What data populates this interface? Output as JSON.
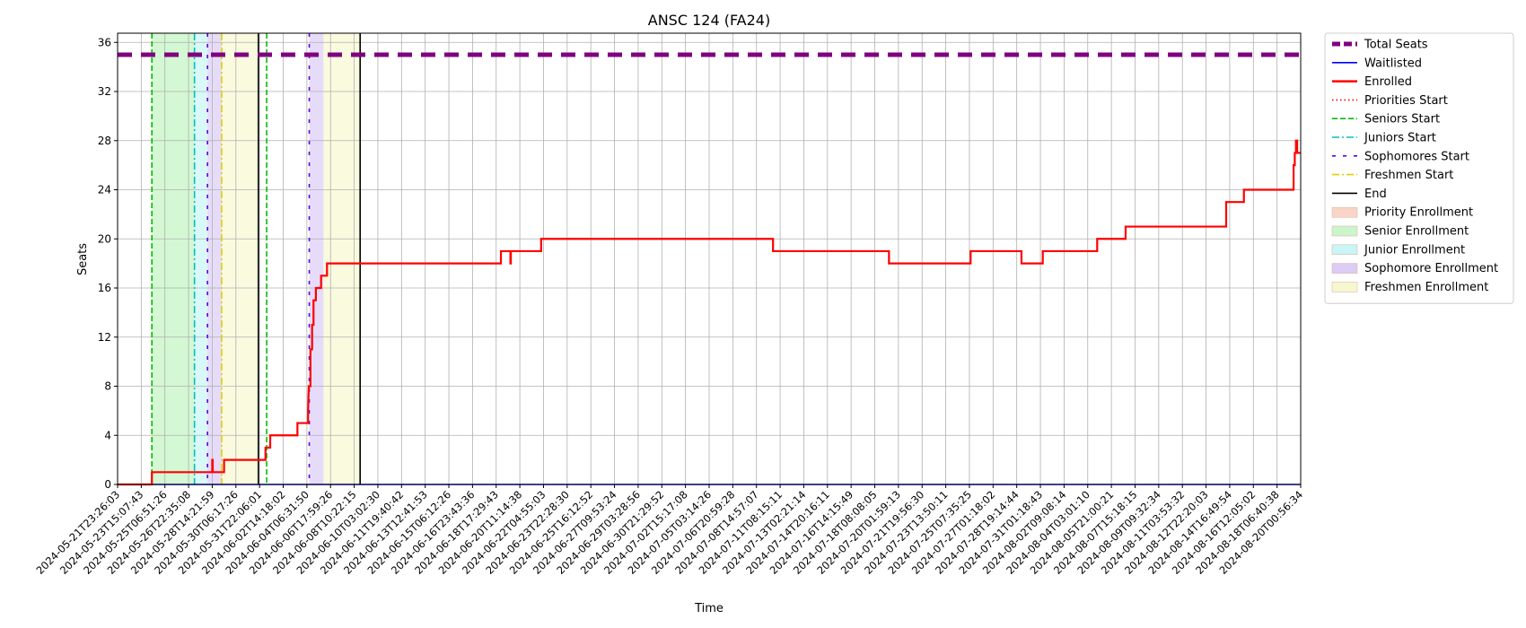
{
  "chart_data": {
    "type": "line",
    "title": "ANSC 124 (FA24)",
    "xlabel": "Time",
    "ylabel": "Seats",
    "ylim": [
      0,
      36.75
    ],
    "y_ticks": [
      0,
      4,
      8,
      12,
      16,
      20,
      24,
      28,
      32,
      36
    ],
    "grid": true,
    "legend_position": "outside-right",
    "x_tick_labels": [
      "2024-05-21T23:26:03",
      "2024-05-23T15:07:43",
      "2024-05-25T06:51:26",
      "2024-05-26T22:35:08",
      "2024-05-28T14:21:59",
      "2024-05-30T06:17:26",
      "2024-05-31T22:06:01",
      "2024-06-02T14:18:02",
      "2024-06-04T06:31:50",
      "2024-06-06T17:59:26",
      "2024-06-08T10:22:15",
      "2024-06-10T03:02:30",
      "2024-06-11T19:40:42",
      "2024-06-13T12:41:53",
      "2024-06-15T06:12:26",
      "2024-06-16T23:43:36",
      "2024-06-18T17:29:43",
      "2024-06-20T11:14:38",
      "2024-06-22T04:55:03",
      "2024-06-23T22:28:30",
      "2024-06-25T16:12:52",
      "2024-06-27T09:53:24",
      "2024-06-29T03:28:56",
      "2024-06-30T21:29:52",
      "2024-07-02T15:17:08",
      "2024-07-05T03:14:26",
      "2024-07-06T20:59:28",
      "2024-07-08T14:57:07",
      "2024-07-11T08:15:11",
      "2024-07-13T02:21:14",
      "2024-07-14T20:16:11",
      "2024-07-16T14:15:49",
      "2024-07-18T08:08:05",
      "2024-07-20T01:59:13",
      "2024-07-21T19:56:30",
      "2024-07-23T13:50:11",
      "2024-07-25T07:35:25",
      "2024-07-27T01:18:02",
      "2024-07-28T19:14:44",
      "2024-07-31T01:18:43",
      "2024-08-02T09:08:14",
      "2024-08-04T03:01:10",
      "2024-08-05T21:00:21",
      "2024-08-07T15:18:15",
      "2024-08-09T09:32:34",
      "2024-08-11T03:53:32",
      "2024-08-12T22:20:03",
      "2024-08-14T16:49:54",
      "2024-08-16T12:05:02",
      "2024-08-18T06:40:38",
      "2024-08-20T00:56:34"
    ],
    "series": [
      {
        "name": "Total Seats",
        "color": "#800080",
        "style": "dashed-thick",
        "y": 35
      },
      {
        "name": "Waitlisted",
        "color": "#0000ff",
        "style": "solid",
        "y": 0
      },
      {
        "name": "Enrolled",
        "color": "#ff0000",
        "style": "step",
        "points": [
          [
            0,
            0
          ],
          [
            1.45,
            0
          ],
          [
            1.45,
            1
          ],
          [
            4,
            1
          ],
          [
            4,
            2
          ],
          [
            4.02,
            2
          ],
          [
            4.02,
            1
          ],
          [
            4.5,
            1
          ],
          [
            4.5,
            2
          ],
          [
            6.25,
            2
          ],
          [
            6.25,
            3
          ],
          [
            6.45,
            3
          ],
          [
            6.45,
            4
          ],
          [
            7.6,
            4
          ],
          [
            7.6,
            5
          ],
          [
            8.05,
            5
          ],
          [
            8.05,
            6
          ],
          [
            8.08,
            8
          ],
          [
            8.15,
            8
          ],
          [
            8.15,
            11
          ],
          [
            8.22,
            11
          ],
          [
            8.22,
            13
          ],
          [
            8.28,
            13
          ],
          [
            8.28,
            15
          ],
          [
            8.38,
            15
          ],
          [
            8.38,
            16
          ],
          [
            8.6,
            16
          ],
          [
            8.6,
            17
          ],
          [
            8.85,
            17
          ],
          [
            8.85,
            18
          ],
          [
            16.2,
            18
          ],
          [
            16.2,
            19
          ],
          [
            16.6,
            19
          ],
          [
            16.6,
            18
          ],
          [
            16.62,
            18
          ],
          [
            16.62,
            19
          ],
          [
            17.9,
            19
          ],
          [
            17.9,
            20
          ],
          [
            27.7,
            20
          ],
          [
            27.7,
            19
          ],
          [
            32.6,
            19
          ],
          [
            32.6,
            18
          ],
          [
            36.05,
            18
          ],
          [
            36.05,
            19
          ],
          [
            38.2,
            19
          ],
          [
            38.2,
            18
          ],
          [
            39.1,
            18
          ],
          [
            39.1,
            19
          ],
          [
            41.4,
            19
          ],
          [
            41.4,
            20
          ],
          [
            42.6,
            20
          ],
          [
            42.6,
            21
          ],
          [
            46.85,
            21
          ],
          [
            46.85,
            23
          ],
          [
            47.6,
            23
          ],
          [
            47.6,
            24
          ],
          [
            49.7,
            24
          ],
          [
            49.7,
            26
          ],
          [
            49.75,
            26
          ],
          [
            49.75,
            27
          ],
          [
            49.8,
            27
          ],
          [
            49.8,
            28
          ],
          [
            49.85,
            28
          ],
          [
            49.85,
            27
          ],
          [
            50,
            27
          ]
        ]
      }
    ],
    "phase_lines": [
      {
        "name": "Priorities Start",
        "color": "#ff0000",
        "style": "dotted",
        "x": 1.45
      },
      {
        "name": "Seniors Start",
        "color": "#00c000",
        "style": "dashed",
        "x": 1.45
      },
      {
        "name": "Juniors Start",
        "color": "#00c0c0",
        "style": "dashdot",
        "x": 3.25
      },
      {
        "name": "Sophomores Start",
        "color": "#6000e0",
        "style": "loose-dashed",
        "x": 3.8
      },
      {
        "name": "Freshmen Start",
        "color": "#e0d000",
        "style": "dashdot",
        "x": 4.4
      },
      {
        "name": "End",
        "color": "#000000",
        "style": "solid",
        "x": 5.95
      },
      {
        "name": "Seniors Start",
        "color": "#00c000",
        "style": "dashed",
        "x": 6.3
      },
      {
        "name": "Sophomores Start",
        "color": "#6000e0",
        "style": "loose-dashed",
        "x": 8.1
      },
      {
        "name": "End",
        "color": "#000000",
        "style": "solid",
        "x": 10.25
      }
    ],
    "regions": [
      {
        "name": "Senior Enrollment",
        "color": "#90ee90",
        "x0": 1.45,
        "x1": 3.25
      },
      {
        "name": "Junior Enrollment",
        "color": "#9ff0f0",
        "x0": 3.25,
        "x1": 3.8
      },
      {
        "name": "Sophomore Enrollment",
        "color": "#c0a8f0",
        "x0": 3.8,
        "x1": 4.4
      },
      {
        "name": "Freshmen Enrollment",
        "color": "#f2f2b0",
        "x0": 4.4,
        "x1": 5.95
      },
      {
        "name": "Sophomore Enrollment",
        "color": "#c0a8f0",
        "x0": 8.1,
        "x1": 8.7
      },
      {
        "name": "Freshmen Enrollment",
        "color": "#f2f2b0",
        "x0": 8.7,
        "x1": 10.25
      }
    ],
    "legend": [
      {
        "label": "Total Seats",
        "kind": "line",
        "color": "#800080",
        "style": "dashed-thick"
      },
      {
        "label": "Waitlisted",
        "kind": "line",
        "color": "#0000ff",
        "style": "solid"
      },
      {
        "label": "Enrolled",
        "kind": "line",
        "color": "#ff0000",
        "style": "solid-thick"
      },
      {
        "label": "Priorities Start",
        "kind": "line",
        "color": "#ff0000",
        "style": "dotted"
      },
      {
        "label": "Seniors Start",
        "kind": "line",
        "color": "#00c000",
        "style": "dashed"
      },
      {
        "label": "Juniors Start",
        "kind": "line",
        "color": "#00c0c0",
        "style": "dashdot"
      },
      {
        "label": "Sophomores Start",
        "kind": "line",
        "color": "#6000e0",
        "style": "loose-dashed"
      },
      {
        "label": "Freshmen Start",
        "kind": "line",
        "color": "#e0d000",
        "style": "dashdot"
      },
      {
        "label": "End",
        "kind": "line",
        "color": "#000000",
        "style": "solid"
      },
      {
        "label": "Priority Enrollment",
        "kind": "patch",
        "color": "#f9d5c8"
      },
      {
        "label": "Senior Enrollment",
        "kind": "patch",
        "color": "#ccf5cc"
      },
      {
        "label": "Junior Enrollment",
        "kind": "patch",
        "color": "#c8f5f5"
      },
      {
        "label": "Sophomore Enrollment",
        "kind": "patch",
        "color": "#dcccf5"
      },
      {
        "label": "Freshmen Enrollment",
        "kind": "patch",
        "color": "#f7f7cf"
      }
    ]
  }
}
